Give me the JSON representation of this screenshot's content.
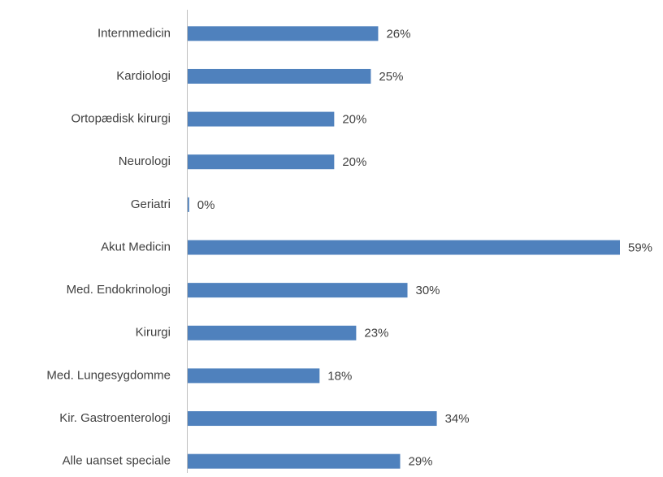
{
  "chart_data": {
    "type": "bar",
    "orientation": "horizontal",
    "categories": [
      "Internmedicin",
      "Kardiologi",
      "Ortopædisk kirurgi",
      "Neurologi",
      "Geriatri",
      "Akut Medicin",
      "Med. Endokrinologi",
      "Kirurgi",
      "Med. Lungesygdomme",
      "Kir. Gastroenterologi",
      "Alle uanset speciale"
    ],
    "values": [
      26,
      25,
      20,
      20,
      0.2,
      59,
      30,
      23,
      18,
      34,
      29
    ],
    "value_labels": [
      "26%",
      "25%",
      "20%",
      "20%",
      "0%",
      "59%",
      "30%",
      "23%",
      "18%",
      "34%",
      "29%"
    ],
    "color": "#4f81bd"
  }
}
